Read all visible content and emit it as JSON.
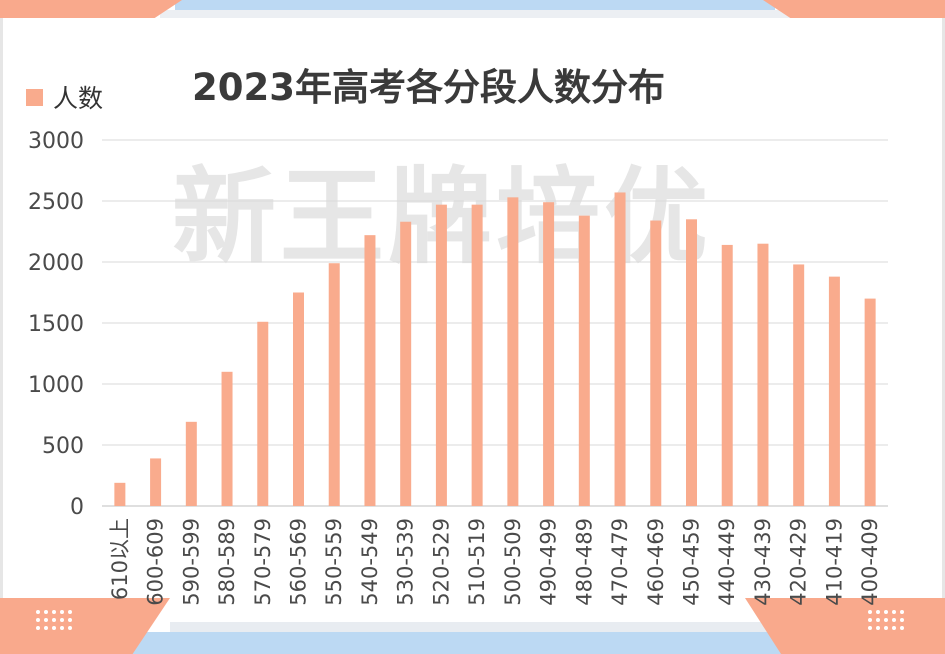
{
  "chart_data": {
    "type": "bar",
    "title": "2023年高考各分段人数分布",
    "legend": {
      "label": "人数",
      "color": "#f9ab8d",
      "position": "top-left"
    },
    "categories": [
      "610以上",
      "600-609",
      "590-599",
      "580-589",
      "570-579",
      "560-569",
      "550-559",
      "540-549",
      "530-539",
      "520-529",
      "510-519",
      "500-509",
      "490-499",
      "480-489",
      "470-479",
      "460-469",
      "450-459",
      "440-449",
      "430-439",
      "420-429",
      "410-419",
      "400-409"
    ],
    "series": [
      {
        "name": "人数",
        "values": [
          190,
          390,
          690,
          1100,
          1510,
          1750,
          1990,
          2220,
          2330,
          2470,
          2470,
          2530,
          2490,
          2380,
          2570,
          2340,
          2350,
          2140,
          2150,
          1980,
          1880,
          1700
        ]
      }
    ],
    "ylim": [
      0,
      3000
    ],
    "yticks": [
      0,
      500,
      1000,
      1500,
      2000,
      2500,
      3000
    ],
    "grid": true,
    "bar_color": "#f9ab8d"
  },
  "watermark": "新王牌培优",
  "colors": {
    "accent": "#f9a98c",
    "frame": "#bcd9f3"
  }
}
